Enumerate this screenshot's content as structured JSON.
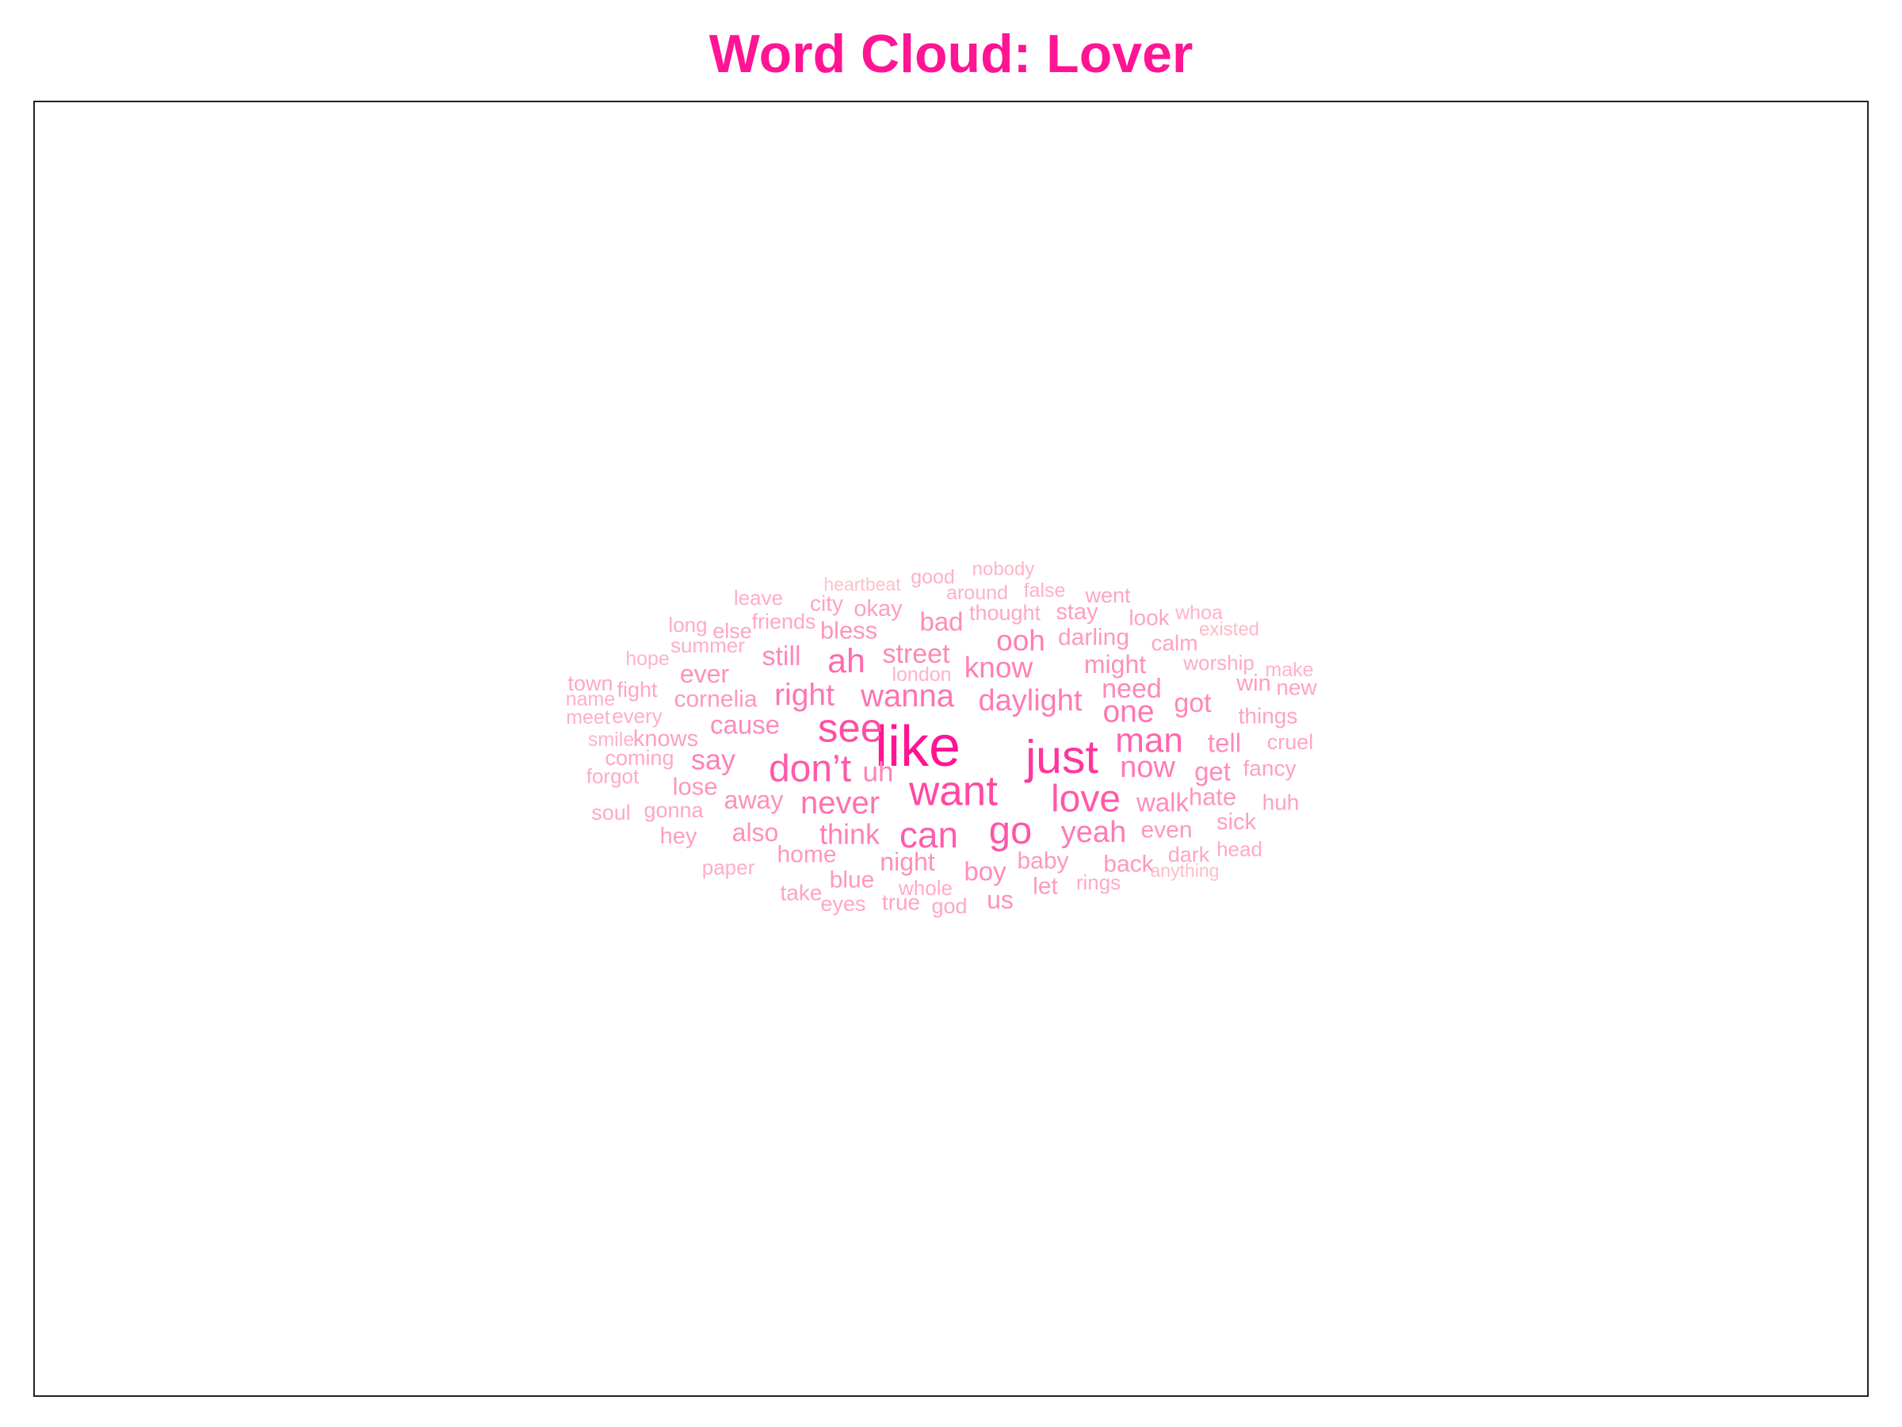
{
  "title": "Word Cloud: Lover",
  "colors": {
    "title": "#ff1493",
    "frame": "#222222",
    "background": "#ffffff"
  },
  "chart_data": {
    "type": "wordcloud",
    "title": "Word Cloud: Lover",
    "color_scale": [
      "#ffc0cb",
      "#ff1493"
    ],
    "words": [
      {
        "text": "like",
        "weight": 1.0
      },
      {
        "text": "just",
        "weight": 0.82
      },
      {
        "text": "want",
        "weight": 0.72
      },
      {
        "text": "see",
        "weight": 0.7
      },
      {
        "text": "go",
        "weight": 0.66
      },
      {
        "text": "don’t",
        "weight": 0.64
      },
      {
        "text": "love",
        "weight": 0.64
      },
      {
        "text": "can",
        "weight": 0.62
      },
      {
        "text": "man",
        "weight": 0.58
      },
      {
        "text": "ah",
        "weight": 0.56
      },
      {
        "text": "never",
        "weight": 0.52
      },
      {
        "text": "wanna",
        "weight": 0.52
      },
      {
        "text": "right",
        "weight": 0.5
      },
      {
        "text": "one",
        "weight": 0.5
      },
      {
        "text": "daylight",
        "weight": 0.48
      },
      {
        "text": "yeah",
        "weight": 0.48
      },
      {
        "text": "now",
        "weight": 0.48
      },
      {
        "text": "ooh",
        "weight": 0.46
      },
      {
        "text": "know",
        "weight": 0.46
      },
      {
        "text": "think",
        "weight": 0.45
      },
      {
        "text": "say",
        "weight": 0.45
      },
      {
        "text": "uh",
        "weight": 0.44
      },
      {
        "text": "still",
        "weight": 0.42
      },
      {
        "text": "street",
        "weight": 0.42
      },
      {
        "text": "got",
        "weight": 0.42
      },
      {
        "text": "need",
        "weight": 0.42
      },
      {
        "text": "cause",
        "weight": 0.4
      },
      {
        "text": "walk",
        "weight": 0.4
      },
      {
        "text": "get",
        "weight": 0.4
      },
      {
        "text": "tell",
        "weight": 0.4
      },
      {
        "text": "boy",
        "weight": 0.4
      },
      {
        "text": "bad",
        "weight": 0.4
      },
      {
        "text": "might",
        "weight": 0.38
      },
      {
        "text": "away",
        "weight": 0.38
      },
      {
        "text": "night",
        "weight": 0.38
      },
      {
        "text": "ever",
        "weight": 0.38
      },
      {
        "text": "also",
        "weight": 0.38
      },
      {
        "text": "us",
        "weight": 0.38
      },
      {
        "text": "lose",
        "weight": 0.36
      },
      {
        "text": "hate",
        "weight": 0.36
      },
      {
        "text": "bless",
        "weight": 0.36
      },
      {
        "text": "cornelia",
        "weight": 0.35
      },
      {
        "text": "home",
        "weight": 0.35
      },
      {
        "text": "blue",
        "weight": 0.35
      },
      {
        "text": "even",
        "weight": 0.35
      },
      {
        "text": "baby",
        "weight": 0.35
      },
      {
        "text": "back",
        "weight": 0.35
      },
      {
        "text": "darling",
        "weight": 0.34
      },
      {
        "text": "let",
        "weight": 0.34
      },
      {
        "text": "win",
        "weight": 0.33
      },
      {
        "text": "knows",
        "weight": 0.32
      },
      {
        "text": "hey",
        "weight": 0.32
      },
      {
        "text": "sick",
        "weight": 0.32
      },
      {
        "text": "okay",
        "weight": 0.32
      },
      {
        "text": "stay",
        "weight": 0.32
      },
      {
        "text": "huh",
        "weight": 0.31
      },
      {
        "text": "fancy",
        "weight": 0.31
      },
      {
        "text": "things",
        "weight": 0.3
      },
      {
        "text": "new",
        "weight": 0.3
      },
      {
        "text": "city",
        "weight": 0.3
      },
      {
        "text": "look",
        "weight": 0.3
      },
      {
        "text": "calm",
        "weight": 0.3
      },
      {
        "text": "true",
        "weight": 0.3
      },
      {
        "text": "take",
        "weight": 0.3
      },
      {
        "text": "cruel",
        "weight": 0.29
      },
      {
        "text": "gonna",
        "weight": 0.29
      },
      {
        "text": "fight",
        "weight": 0.29
      },
      {
        "text": "else",
        "weight": 0.29
      },
      {
        "text": "went",
        "weight": 0.29
      },
      {
        "text": "dark",
        "weight": 0.29
      },
      {
        "text": "god",
        "weight": 0.29
      },
      {
        "text": "eyes",
        "weight": 0.28
      },
      {
        "text": "thought",
        "weight": 0.28
      },
      {
        "text": "friends",
        "weight": 0.28
      },
      {
        "text": "coming",
        "weight": 0.28
      },
      {
        "text": "town",
        "weight": 0.28
      },
      {
        "text": "soul",
        "weight": 0.28
      },
      {
        "text": "long",
        "weight": 0.27
      },
      {
        "text": "rings",
        "weight": 0.27
      },
      {
        "text": "head",
        "weight": 0.27
      },
      {
        "text": "worship",
        "weight": 0.27
      },
      {
        "text": "forgot",
        "weight": 0.27
      },
      {
        "text": "whole",
        "weight": 0.27
      },
      {
        "text": "summer",
        "weight": 0.26
      },
      {
        "text": "paper",
        "weight": 0.26
      },
      {
        "text": "leave",
        "weight": 0.26
      },
      {
        "text": "every",
        "weight": 0.26
      },
      {
        "text": "name",
        "weight": 0.25
      },
      {
        "text": "meet",
        "weight": 0.25
      },
      {
        "text": "good",
        "weight": 0.25
      },
      {
        "text": "around",
        "weight": 0.25
      },
      {
        "text": "false",
        "weight": 0.25
      },
      {
        "text": "whoa",
        "weight": 0.24
      },
      {
        "text": "make",
        "weight": 0.24
      },
      {
        "text": "hope",
        "weight": 0.24
      },
      {
        "text": "smile",
        "weight": 0.24
      },
      {
        "text": "london",
        "weight": 0.24
      },
      {
        "text": "nobody",
        "weight": 0.23
      },
      {
        "text": "existed",
        "weight": 0.22
      },
      {
        "text": "anything",
        "weight": 0.21
      },
      {
        "text": "heartbeat",
        "weight": 0.2
      }
    ]
  }
}
